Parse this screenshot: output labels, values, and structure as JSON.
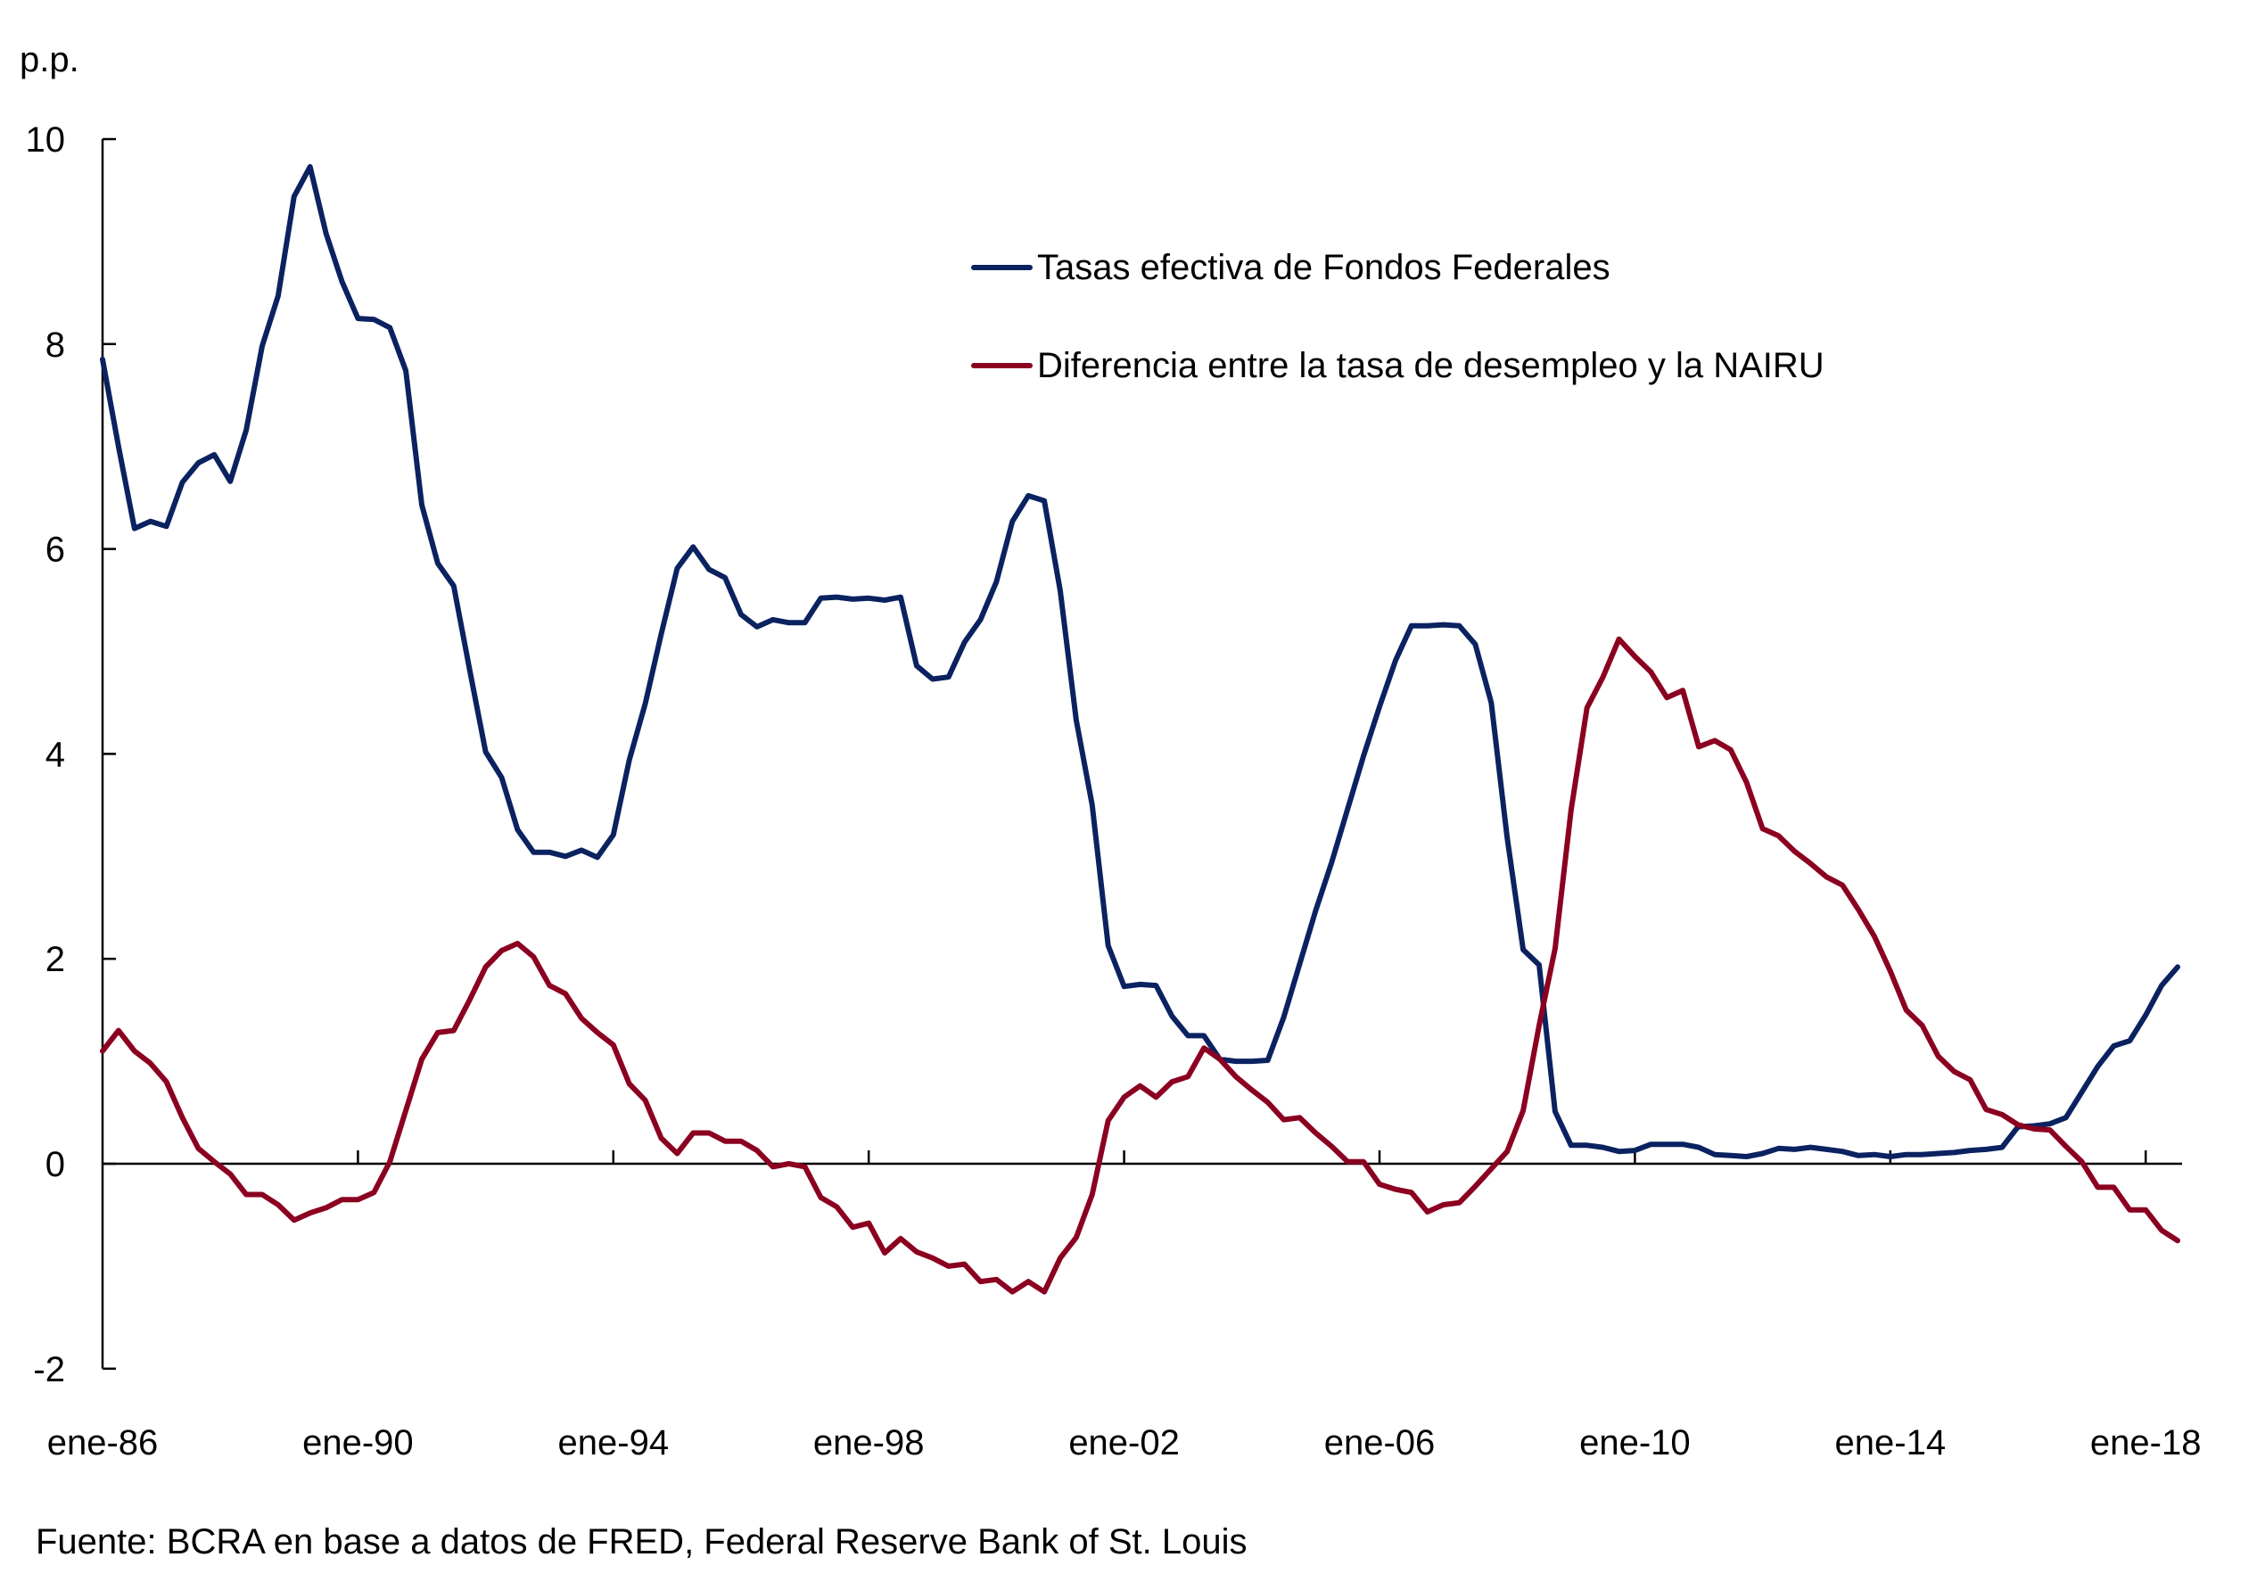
{
  "chart_data": {
    "type": "line",
    "title": "",
    "ylabel": "p.p.",
    "xlabel": "",
    "ylim": [
      -2,
      10
    ],
    "yticks": [
      "-2",
      "0",
      "2",
      "4",
      "6",
      "8",
      "10"
    ],
    "ytick_values": [
      -2,
      0,
      2,
      4,
      6,
      8,
      10
    ],
    "x_start": "1986-Q1",
    "x_frequency": "quarterly",
    "xtick_labels": [
      "ene-86",
      "ene-90",
      "ene-94",
      "ene-98",
      "ene-02",
      "ene-06",
      "ene-10",
      "ene-14",
      "ene-18"
    ],
    "xtick_years": [
      1986,
      1990,
      1994,
      1998,
      2002,
      2006,
      2010,
      2014,
      2018
    ],
    "legend_position": "top-right",
    "grid": false,
    "series": [
      {
        "name": "Tasas efectiva de Fondos Federales",
        "color": "#0b2260",
        "values": [
          7.85,
          7.0,
          6.2,
          6.27,
          6.22,
          6.65,
          6.84,
          6.92,
          6.66,
          7.16,
          7.98,
          8.47,
          9.44,
          9.73,
          9.08,
          8.61,
          8.25,
          8.24,
          8.16,
          7.74,
          6.43,
          5.86,
          5.64,
          4.82,
          4.02,
          3.77,
          3.26,
          3.04,
          3.04,
          3.0,
          3.06,
          2.99,
          3.21,
          3.94,
          4.49,
          5.17,
          5.81,
          6.02,
          5.8,
          5.72,
          5.36,
          5.24,
          5.31,
          5.28,
          5.28,
          5.52,
          5.53,
          5.51,
          5.52,
          5.5,
          5.53,
          4.86,
          4.73,
          4.75,
          5.09,
          5.31,
          5.68,
          6.27,
          6.52,
          6.47,
          5.59,
          4.33,
          3.5,
          2.13,
          1.73,
          1.75,
          1.74,
          1.44,
          1.25,
          1.25,
          1.02,
          1.0,
          1.0,
          1.01,
          1.43,
          1.95,
          2.47,
          2.94,
          3.46,
          3.98,
          4.46,
          4.91,
          5.25,
          5.25,
          5.26,
          5.25,
          5.07,
          4.5,
          3.18,
          2.09,
          1.94,
          0.51,
          0.18,
          0.18,
          0.16,
          0.12,
          0.13,
          0.19,
          0.19,
          0.19,
          0.16,
          0.09,
          0.08,
          0.07,
          0.1,
          0.15,
          0.14,
          0.16,
          0.14,
          0.12,
          0.08,
          0.09,
          0.07,
          0.09,
          0.09,
          0.1,
          0.11,
          0.13,
          0.14,
          0.16,
          0.36,
          0.37,
          0.39,
          0.45,
          0.7,
          0.95,
          1.15,
          1.2,
          1.45,
          1.74,
          1.92
        ]
      },
      {
        "name": "Diferencia entre la tasa de desempleo y la NAIRU",
        "color": "#8b0020",
        "values": [
          1.1,
          1.3,
          1.1,
          0.98,
          0.8,
          0.45,
          0.15,
          0.02,
          -0.1,
          -0.3,
          -0.3,
          -0.4,
          -0.55,
          -0.48,
          -0.43,
          -0.35,
          -0.35,
          -0.28,
          0.02,
          0.52,
          1.02,
          1.28,
          1.3,
          1.6,
          1.92,
          2.08,
          2.15,
          2.02,
          1.74,
          1.66,
          1.42,
          1.28,
          1.16,
          0.78,
          0.62,
          0.25,
          0.1,
          0.3,
          0.3,
          0.22,
          0.22,
          0.13,
          -0.03,
          0.0,
          -0.03,
          -0.33,
          -0.42,
          -0.62,
          -0.58,
          -0.87,
          -0.73,
          -0.86,
          -0.92,
          -1.0,
          -0.98,
          -1.15,
          -1.13,
          -1.25,
          -1.15,
          -1.25,
          -0.92,
          -0.72,
          -0.3,
          0.42,
          0.65,
          0.76,
          0.65,
          0.8,
          0.85,
          1.13,
          1.02,
          0.85,
          0.72,
          0.6,
          0.43,
          0.45,
          0.3,
          0.17,
          0.02,
          0.02,
          -0.2,
          -0.25,
          -0.28,
          -0.47,
          -0.4,
          -0.38,
          -0.22,
          -0.05,
          0.12,
          0.52,
          1.35,
          2.1,
          3.45,
          4.45,
          4.75,
          5.12,
          4.95,
          4.8,
          4.55,
          4.62,
          4.07,
          4.13,
          4.04,
          3.72,
          3.27,
          3.2,
          3.05,
          2.93,
          2.8,
          2.72,
          2.48,
          2.22,
          1.88,
          1.5,
          1.35,
          1.05,
          0.9,
          0.82,
          0.53,
          0.48,
          0.38,
          0.34,
          0.33,
          0.17,
          0.02,
          -0.23,
          -0.23,
          -0.45,
          -0.45,
          -0.65,
          -0.75
        ]
      }
    ],
    "source": "Fuente: BCRA en base a datos de FRED, Federal Reserve Bank of St. Louis"
  }
}
